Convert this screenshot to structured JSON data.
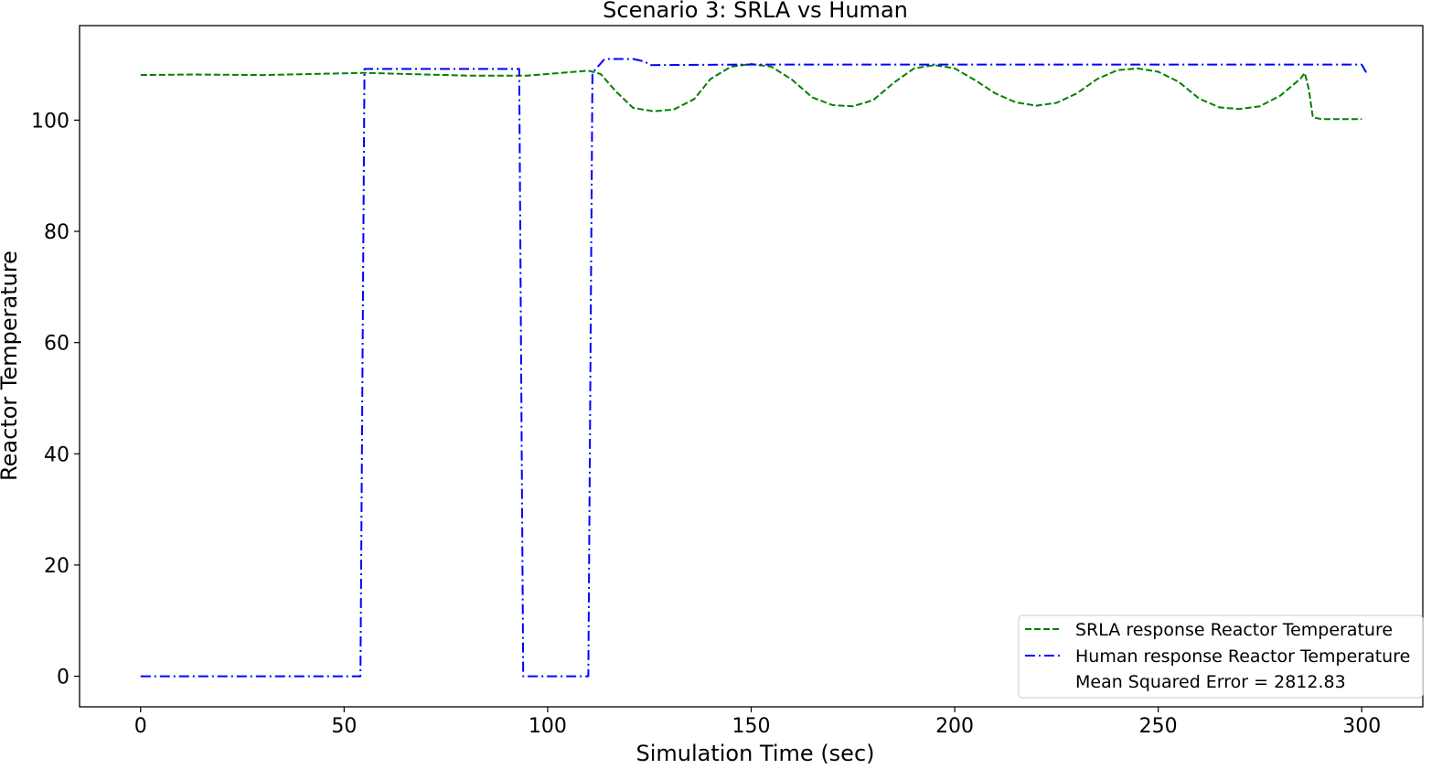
{
  "chart_data": {
    "type": "line",
    "title": "Scenario 3: SRLA vs Human",
    "xlabel": "Simulation Time (sec)",
    "ylabel": "Reactor Temperature",
    "xlim": [
      -15,
      315
    ],
    "ylim": [
      -5.5,
      117
    ],
    "xticks": [
      0,
      50,
      100,
      150,
      200,
      250,
      300
    ],
    "yticks": [
      0,
      20,
      40,
      60,
      80,
      100
    ],
    "grid": false,
    "legend_position": "lower-right",
    "annotation": "Mean Squared Error = 2812.83",
    "series": [
      {
        "name": "SRLA response Reactor Temperature",
        "color": "#008000",
        "style": "dashed",
        "points": [
          [
            0,
            108.1
          ],
          [
            13,
            108.2
          ],
          [
            30,
            108.1
          ],
          [
            55,
            108.5
          ],
          [
            65,
            108.3
          ],
          [
            80,
            108.0
          ],
          [
            95,
            108.0
          ],
          [
            110,
            108.9
          ],
          [
            113,
            108.3
          ],
          [
            117,
            105.0
          ],
          [
            121,
            102.2
          ],
          [
            126,
            101.6
          ],
          [
            131,
            101.9
          ],
          [
            136,
            103.8
          ],
          [
            140,
            107.4
          ],
          [
            145,
            109.6
          ],
          [
            150,
            110.1
          ],
          [
            155,
            109.6
          ],
          [
            160,
            107.3
          ],
          [
            165,
            104.1
          ],
          [
            170,
            102.7
          ],
          [
            175,
            102.5
          ],
          [
            180,
            103.6
          ],
          [
            185,
            106.7
          ],
          [
            190,
            109.3
          ],
          [
            195,
            109.9
          ],
          [
            200,
            109.3
          ],
          [
            205,
            107.2
          ],
          [
            210,
            104.8
          ],
          [
            215,
            103.2
          ],
          [
            220,
            102.6
          ],
          [
            225,
            103.1
          ],
          [
            230,
            104.8
          ],
          [
            235,
            107.4
          ],
          [
            240,
            109.0
          ],
          [
            245,
            109.3
          ],
          [
            250,
            108.7
          ],
          [
            255,
            106.9
          ],
          [
            260,
            103.9
          ],
          [
            265,
            102.3
          ],
          [
            270,
            102.0
          ],
          [
            275,
            102.5
          ],
          [
            280,
            104.4
          ],
          [
            285,
            107.5
          ],
          [
            286,
            108.5
          ],
          [
            287,
            105.5
          ],
          [
            288,
            100.5
          ],
          [
            290,
            100.2
          ],
          [
            300,
            100.2
          ]
        ]
      },
      {
        "name": "Human response Reactor Temperature",
        "color": "#0000ff",
        "style": "dashdot",
        "points": [
          [
            0,
            0
          ],
          [
            54,
            0
          ],
          [
            55,
            109.2
          ],
          [
            93,
            109.2
          ],
          [
            94,
            0
          ],
          [
            110,
            0
          ],
          [
            111,
            108.5
          ],
          [
            114,
            111.0
          ],
          [
            121,
            111.0
          ],
          [
            124,
            110.5
          ],
          [
            125,
            109.9
          ],
          [
            150,
            110.0
          ],
          [
            300,
            110.0
          ],
          [
            301,
            108.7
          ],
          [
            302,
            108.7
          ]
        ]
      },
      {
        "name": "Mean Squared Error = 2812.83",
        "color": "#ffffff",
        "style": "none",
        "points": []
      }
    ]
  }
}
